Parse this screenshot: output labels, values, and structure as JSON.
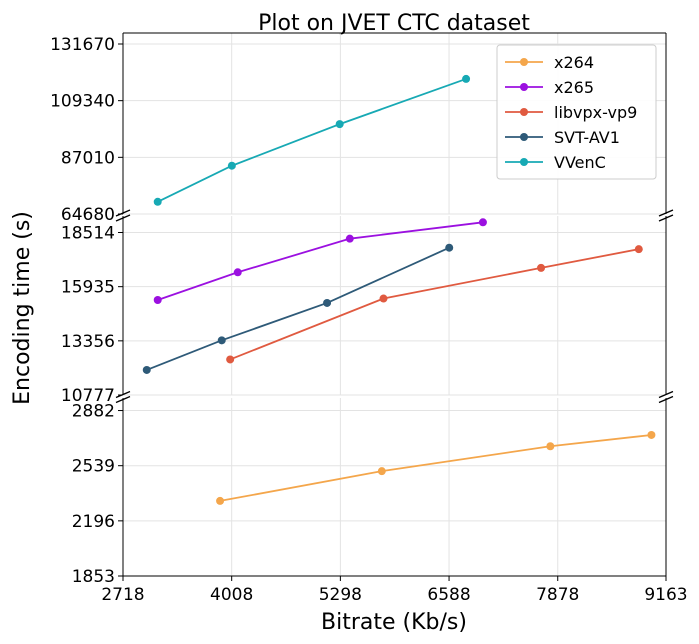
{
  "chart_data": {
    "type": "line",
    "title": "Plot on JVET CTC dataset",
    "xlabel": "Bitrate (Kb/s)",
    "ylabel": "Encoding time (s)",
    "xlim": [
      2718,
      9163
    ],
    "x_ticks": [
      "2718",
      "4008",
      "5298",
      "6588",
      "7878",
      "9163"
    ],
    "x_tick_values": [
      2718,
      4008,
      5298,
      6588,
      7878,
      9163
    ],
    "broken_y_axis": true,
    "grid": true,
    "legend_position": "top-right",
    "panels": [
      {
        "id": "top",
        "ylim": [
          64680,
          136000
        ],
        "y_ticks": [
          "64680",
          "87010",
          "109340",
          "131670"
        ],
        "y_tick_values": [
          64680,
          87010,
          109340,
          131670
        ]
      },
      {
        "id": "middle",
        "ylim": [
          10777,
          19300
        ],
        "y_ticks": [
          "10777",
          "13356",
          "15935",
          "18514"
        ],
        "y_tick_values": [
          10777,
          13356,
          15935,
          18514
        ]
      },
      {
        "id": "bottom",
        "ylim": [
          1853,
          2960
        ],
        "y_ticks": [
          "1853",
          "2196",
          "2539",
          "2882"
        ],
        "y_tick_values": [
          1853,
          2196,
          2539,
          2882
        ]
      }
    ],
    "series": [
      {
        "name": "x264",
        "color": "#f4a64b",
        "panel": "bottom",
        "x": [
          3870,
          5790,
          7790,
          8990
        ],
        "y": [
          2320,
          2505,
          2660,
          2730
        ]
      },
      {
        "name": "x265",
        "color": "#9b10e0",
        "panel": "middle",
        "x": [
          3130,
          4080,
          5410,
          6990
        ],
        "y": [
          15300,
          16620,
          18220,
          19000
        ]
      },
      {
        "name": "libvpx-vp9",
        "color": "#e05a40",
        "panel": "middle",
        "x": [
          3990,
          5810,
          7680,
          8840
        ],
        "y": [
          12470,
          15370,
          16830,
          17720
        ]
      },
      {
        "name": "SVT-AV1",
        "color": "#2e5a78",
        "panel": "middle",
        "x": [
          3000,
          3890,
          5140,
          6590
        ],
        "y": [
          11970,
          13380,
          15160,
          17790
        ]
      },
      {
        "name": "VVenC",
        "color": "#17a9b4",
        "panel": "top",
        "x": [
          3130,
          4010,
          5290,
          6790
        ],
        "y": [
          69500,
          83700,
          100100,
          117900
        ]
      }
    ]
  }
}
